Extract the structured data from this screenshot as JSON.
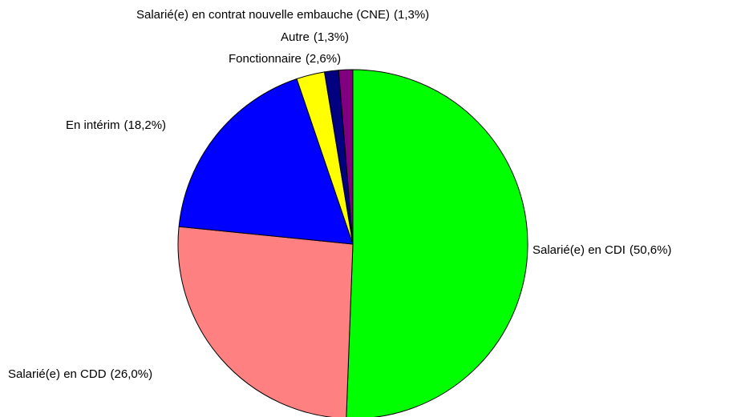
{
  "chart_data": {
    "type": "pie",
    "categories": [
      "Salarié(e) en CDI",
      "Salarié(e) en CDD",
      "En intérim",
      "Fonctionnaire",
      "Autre",
      "Salarié(e) en contrat nouvelle embauche (CNE)"
    ],
    "values": [
      50.6,
      26.0,
      18.2,
      2.6,
      1.3,
      1.3
    ],
    "value_labels": [
      "(50,6%)",
      "(26,0%)",
      "(18,2%)",
      "(2,6%)",
      "(1,3%)",
      "(1,3%)"
    ],
    "colors": [
      "#00ff00",
      "#ff8080",
      "#0000ff",
      "#ffff00",
      "#000080",
      "#800080"
    ]
  }
}
